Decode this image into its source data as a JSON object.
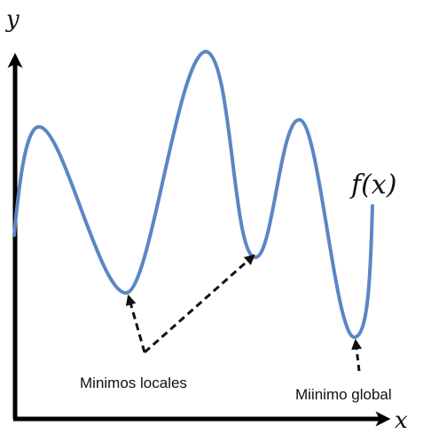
{
  "labels": {
    "y_axis": "y",
    "x_axis": "x",
    "function": "f(x)",
    "local_minima": "Minimos locales",
    "global_minimum": "Miinimo global"
  },
  "colors": {
    "curve": "#5b86c4",
    "axes": "#000000",
    "arrows": "#111111"
  }
}
